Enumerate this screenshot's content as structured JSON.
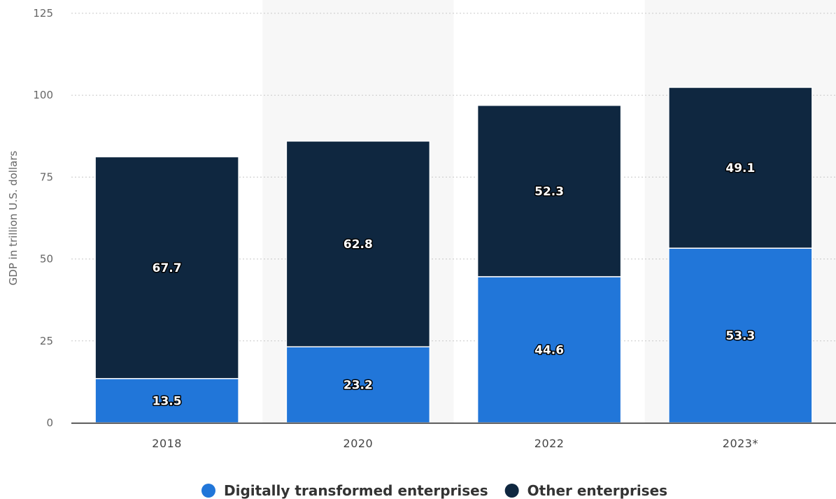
{
  "chart_data": {
    "type": "bar",
    "stacked": true,
    "categories": [
      "2018",
      "2020",
      "2022",
      "2023*"
    ],
    "series": [
      {
        "name": "Digitally transformed enterprises",
        "values": [
          13.5,
          23.2,
          44.6,
          53.3
        ],
        "color": "#2176d9"
      },
      {
        "name": "Other enterprises",
        "values": [
          67.7,
          62.8,
          52.3,
          49.1
        ],
        "color": "#0f2740"
      }
    ],
    "ylabel": "GDP in trillion U.S. dollars",
    "xlabel": "",
    "ylim": [
      0,
      125
    ],
    "yticks": [
      0,
      25,
      50,
      75,
      100,
      125
    ],
    "grid": true,
    "legend_position": "bottom",
    "alternating_band_color": "#f7f7f7"
  }
}
